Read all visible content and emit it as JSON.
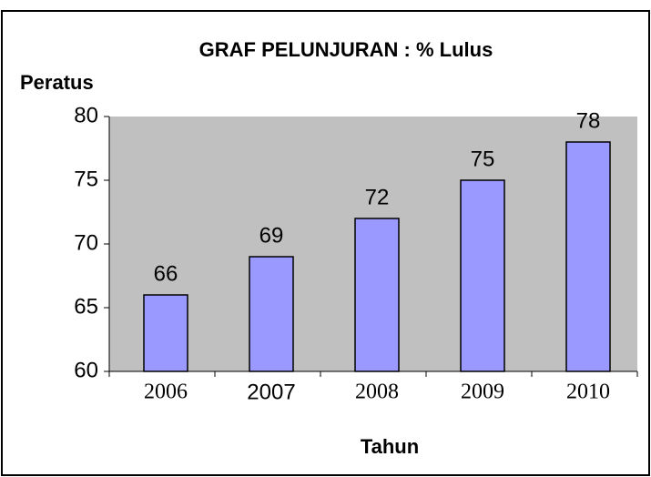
{
  "chart_data": {
    "type": "bar",
    "title": "GRAF PELUNJURAN : % Lulus",
    "y_label": "Peratus",
    "x_label": "Tahun",
    "categories": [
      "2006",
      "2007",
      "2008",
      "2009",
      "2010"
    ],
    "values": [
      66,
      69,
      72,
      75,
      78
    ],
    "color": "#9999ff",
    "ylim": [
      60,
      80
    ],
    "yticks": [
      60,
      65,
      70,
      75,
      80
    ],
    "grid": false
  }
}
